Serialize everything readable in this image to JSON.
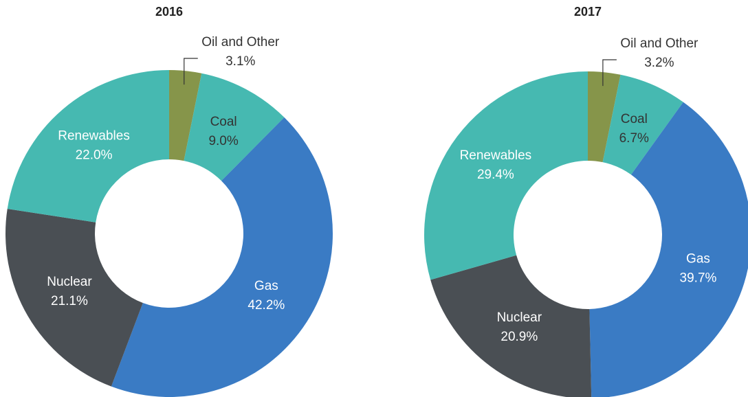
{
  "chart_data": [
    {
      "type": "pie",
      "title": "2016",
      "categories": [
        "Oil and Other",
        "Coal",
        "Gas",
        "Nuclear",
        "Renewables"
      ],
      "values": [
        3.1,
        9.0,
        42.2,
        21.1,
        22.0
      ],
      "value_labels": [
        "3.1%",
        "9.0%",
        "42.2%",
        "21.1%",
        "22.0%"
      ],
      "colors": [
        "#86954a",
        "#46b9b1",
        "#3a7bc4",
        "#4a4f54",
        "#46b9b1"
      ],
      "label_colors": [
        "#333333",
        "#333333",
        "#ffffff",
        "#ffffff",
        "#ffffff"
      ]
    },
    {
      "type": "pie",
      "title": "2017",
      "categories": [
        "Oil and Other",
        "Coal",
        "Gas",
        "Nuclear",
        "Renewables"
      ],
      "values": [
        3.2,
        6.7,
        39.7,
        20.9,
        29.4
      ],
      "value_labels": [
        "3.2%",
        "6.7%",
        "39.7%",
        "20.9%",
        "29.4%"
      ],
      "colors": [
        "#86954a",
        "#46b9b1",
        "#3a7bc4",
        "#4a4f54",
        "#46b9b1"
      ],
      "label_colors": [
        "#333333",
        "#333333",
        "#ffffff",
        "#ffffff",
        "#ffffff"
      ]
    }
  ]
}
